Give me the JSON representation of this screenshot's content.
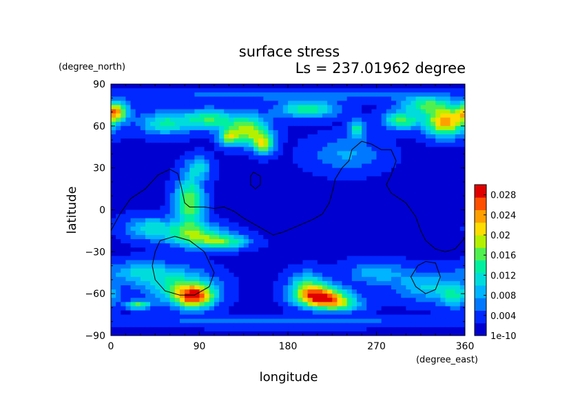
{
  "chart_data": {
    "type": "heatmap",
    "title": "surface stress",
    "subtitle": "Ls = 237.01962 degree",
    "xlabel": "longitude",
    "ylabel": "latitude",
    "xunit": "(degree_east)",
    "yunit": "(degree_north)",
    "xlim": [
      0,
      360
    ],
    "ylim": [
      -90,
      90
    ],
    "xticks": [
      0,
      90,
      180,
      270,
      360
    ],
    "yticks": [
      90,
      60,
      30,
      0,
      -30,
      -60,
      -90
    ],
    "colorbar": {
      "min": 1e-10,
      "max": 0.03,
      "ticks": [
        "0.028",
        "0.024",
        "0.02",
        "0.016",
        "0.012",
        "0.008",
        "0.004",
        "1e-10"
      ],
      "tick_values": [
        0.028,
        0.024,
        0.02,
        0.016,
        0.012,
        0.008,
        0.004,
        0
      ],
      "colors": [
        "#0000d0",
        "#0028ff",
        "#0078ff",
        "#00b4ff",
        "#00dcdc",
        "#00f0a0",
        "#50f050",
        "#b4f000",
        "#ffdc00",
        "#ffa000",
        "#ff5000",
        "#e00000"
      ]
    },
    "field": {
      "background": 0.002,
      "blobs": [
        {
          "lon": 5,
          "lat": 70,
          "rlon": 12,
          "rlat": 7,
          "v": 0.02
        },
        {
          "lon": 55,
          "lat": 62,
          "rlon": 25,
          "rlat": 8,
          "v": 0.011
        },
        {
          "lon": 100,
          "lat": 65,
          "rlon": 25,
          "rlat": 7,
          "v": 0.013
        },
        {
          "lon": 140,
          "lat": 57,
          "rlon": 20,
          "rlat": 10,
          "v": 0.017
        },
        {
          "lon": 155,
          "lat": 47,
          "rlon": 10,
          "rlat": 7,
          "v": 0.016
        },
        {
          "lon": 120,
          "lat": 52,
          "rlon": 10,
          "rlat": 6,
          "v": 0.013
        },
        {
          "lon": 200,
          "lat": 72,
          "rlon": 30,
          "rlat": 6,
          "v": 0.013
        },
        {
          "lon": 250,
          "lat": 58,
          "rlon": 7,
          "rlat": 6,
          "v": 0.012
        },
        {
          "lon": 295,
          "lat": 64,
          "rlon": 18,
          "rlat": 6,
          "v": 0.014
        },
        {
          "lon": 340,
          "lat": 63,
          "rlon": 20,
          "rlat": 10,
          "v": 0.022
        },
        {
          "lon": 320,
          "lat": 75,
          "rlon": 25,
          "rlat": 6,
          "v": 0.012
        },
        {
          "lon": 240,
          "lat": 40,
          "rlon": 35,
          "rlat": 12,
          "v": 0.006
        },
        {
          "lon": 80,
          "lat": 5,
          "rlon": 14,
          "rlat": 18,
          "v": 0.016
        },
        {
          "lon": 85,
          "lat": -18,
          "rlon": 30,
          "rlat": 8,
          "v": 0.013
        },
        {
          "lon": 115,
          "lat": -23,
          "rlon": 25,
          "rlat": 5,
          "v": 0.012
        },
        {
          "lon": 40,
          "lat": -13,
          "rlon": 25,
          "rlat": 8,
          "v": 0.009
        },
        {
          "lon": 90,
          "lat": 30,
          "rlon": 12,
          "rlat": 8,
          "v": 0.008
        },
        {
          "lon": 30,
          "lat": -45,
          "rlon": 35,
          "rlat": 8,
          "v": 0.008
        },
        {
          "lon": 85,
          "lat": -62,
          "rlon": 20,
          "rlat": 8,
          "v": 0.023
        },
        {
          "lon": 70,
          "lat": -55,
          "rlon": 35,
          "rlat": 12,
          "v": 0.01
        },
        {
          "lon": 28,
          "lat": -68,
          "rlon": 12,
          "rlat": 3,
          "v": 0.013
        },
        {
          "lon": 215,
          "lat": -62,
          "rlon": 25,
          "rlat": 7,
          "v": 0.023
        },
        {
          "lon": 230,
          "lat": -68,
          "rlon": 25,
          "rlat": 5,
          "v": 0.012
        },
        {
          "lon": 200,
          "lat": -55,
          "rlon": 18,
          "rlat": 10,
          "v": 0.012
        },
        {
          "lon": 270,
          "lat": -45,
          "rlon": 30,
          "rlat": 8,
          "v": 0.007
        },
        {
          "lon": 320,
          "lat": -55,
          "rlon": 30,
          "rlat": 10,
          "v": 0.008
        },
        {
          "lon": 350,
          "lat": -62,
          "rlon": 15,
          "rlat": 8,
          "v": 0.01
        },
        {
          "lon": 180,
          "lat": -80,
          "rlon": 180,
          "rlat": 4,
          "v": 0.004
        },
        {
          "lon": 180,
          "lat": 82,
          "rlon": 180,
          "rlat": 4,
          "v": 0.004
        }
      ]
    },
    "contours": [
      [
        [
          0,
          -15
        ],
        [
          10,
          -2
        ],
        [
          20,
          8
        ],
        [
          35,
          15
        ],
        [
          48,
          25
        ],
        [
          60,
          29
        ],
        [
          68,
          26
        ],
        [
          72,
          15
        ],
        [
          75,
          5
        ],
        [
          80,
          2
        ],
        [
          95,
          2
        ],
        [
          105,
          1
        ],
        [
          115,
          2
        ],
        [
          125,
          -1
        ],
        [
          135,
          -6
        ],
        [
          145,
          -10
        ],
        [
          155,
          -14
        ],
        [
          165,
          -18
        ],
        [
          175,
          -16
        ],
        [
          185,
          -13
        ],
        [
          195,
          -10
        ],
        [
          205,
          -7
        ],
        [
          215,
          -3
        ],
        [
          222,
          5
        ],
        [
          226,
          15
        ],
        [
          228,
          22
        ],
        [
          235,
          30
        ],
        [
          242,
          35
        ],
        [
          245,
          43
        ],
        [
          255,
          49
        ],
        [
          265,
          47
        ],
        [
          275,
          43
        ],
        [
          285,
          43
        ],
        [
          290,
          35
        ],
        [
          285,
          25
        ],
        [
          280,
          18
        ],
        [
          285,
          12
        ],
        [
          300,
          5
        ],
        [
          310,
          -5
        ],
        [
          315,
          -15
        ],
        [
          320,
          -22
        ],
        [
          330,
          -28
        ],
        [
          340,
          -30
        ],
        [
          350,
          -28
        ],
        [
          360,
          -20
        ]
      ],
      [
        [
          145,
          27
        ],
        [
          152,
          24
        ],
        [
          152,
          18
        ],
        [
          147,
          15
        ],
        [
          142,
          18
        ],
        [
          142,
          24
        ],
        [
          145,
          27
        ]
      ],
      [
        [
          50,
          -22
        ],
        [
          65,
          -19
        ],
        [
          80,
          -22
        ],
        [
          95,
          -30
        ],
        [
          105,
          -45
        ],
        [
          100,
          -55
        ],
        [
          85,
          -61
        ],
        [
          70,
          -61
        ],
        [
          55,
          -58
        ],
        [
          45,
          -50
        ],
        [
          42,
          -40
        ],
        [
          45,
          -30
        ],
        [
          50,
          -22
        ]
      ],
      [
        [
          312,
          -40
        ],
        [
          320,
          -37
        ],
        [
          330,
          -38
        ],
        [
          335,
          -48
        ],
        [
          330,
          -57
        ],
        [
          320,
          -60
        ],
        [
          310,
          -55
        ],
        [
          305,
          -48
        ],
        [
          312,
          -40
        ]
      ]
    ]
  }
}
